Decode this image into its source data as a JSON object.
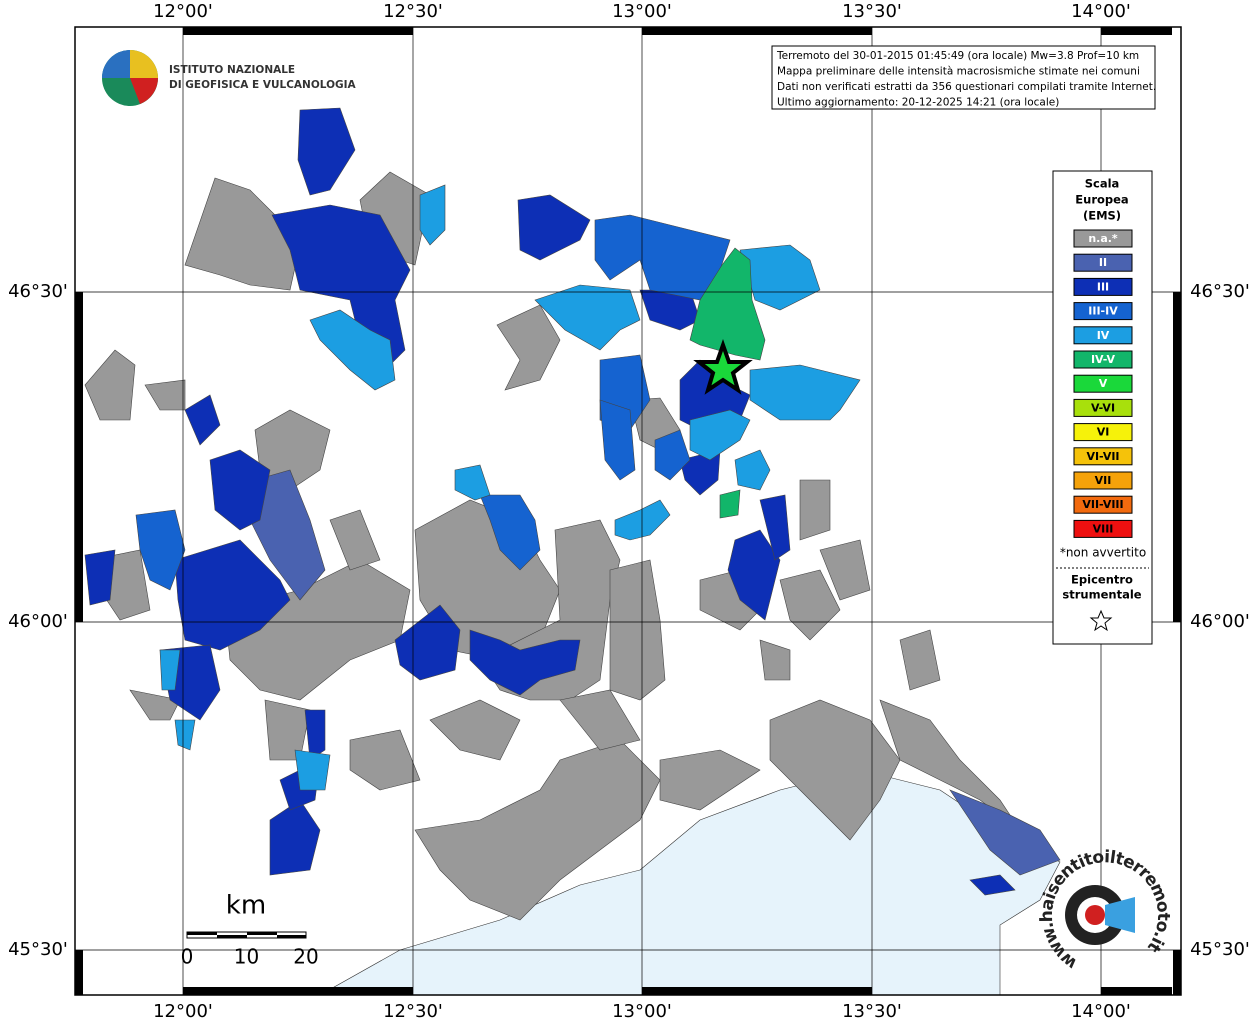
{
  "logo": {
    "lines": [
      "ISTITUTO NAZIONALE",
      "DI GEOFISICA E VULCANOLOGIA"
    ]
  },
  "info": [
    "Terremoto del 30-01-2015 01:45:49 (ora locale) Mw=3.8 Prof=10 km",
    "Mappa preliminare delle intensità macrosismiche stimate nei comuni",
    "Dati non verificati estratti da 356 questionari compilati tramite Internet.",
    "Ultimo aggiornamento: 20-12-2025 14:21 (ora locale)"
  ],
  "axes": {
    "x_labels": [
      "12°00'",
      "12°30'",
      "13°00'",
      "13°30'",
      "14°00'"
    ],
    "y_labels": [
      "46°30'",
      "46°00'",
      "45°30'"
    ]
  },
  "legend": {
    "title": [
      "Scala",
      "Europea",
      "(EMS)"
    ],
    "items": [
      {
        "label": "n.a.*",
        "color": "#999999"
      },
      {
        "label": "II",
        "color": "#4a62b0"
      },
      {
        "label": "III",
        "color": "#0d2fb5"
      },
      {
        "label": "III-IV",
        "color": "#1563d0"
      },
      {
        "label": "IV",
        "color": "#1c9ee2"
      },
      {
        "label": "IV-V",
        "color": "#12b66a"
      },
      {
        "label": "V",
        "color": "#1ad83a"
      },
      {
        "label": "V-VI",
        "color": "#a8e00c"
      },
      {
        "label": "VI",
        "color": "#f6f20a"
      },
      {
        "label": "VI-VII",
        "color": "#f5c20a"
      },
      {
        "label": "VII",
        "color": "#f5a20a"
      },
      {
        "label": "VII-VIII",
        "color": "#f26a0e"
      },
      {
        "label": "VIII",
        "color": "#ee1010"
      }
    ],
    "note": "*non avvertito",
    "epicenter": [
      "Epicentro",
      "strumentale"
    ]
  },
  "scale": {
    "unit": "km",
    "ticks": [
      "0",
      "10",
      "20"
    ]
  },
  "watermark": "www.haisentitoilterremoto.it"
}
